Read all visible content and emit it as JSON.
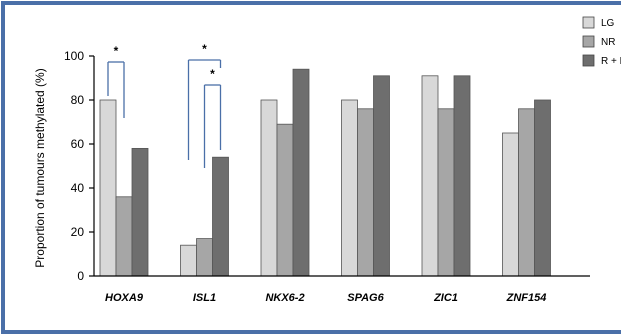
{
  "chart_data": {
    "type": "bar",
    "title": "",
    "xlabel": "",
    "ylabel": "Proportion of tumours methylated (%)",
    "ylim": [
      0,
      100
    ],
    "yticks": [
      0,
      20,
      40,
      60,
      80,
      100
    ],
    "categories": [
      "HOXA9",
      "ISL1",
      "NKX6-2",
      "SPAG6",
      "ZIC1",
      "ZNF154"
    ],
    "series": [
      {
        "name": "LG",
        "color": "#d8d8d8",
        "values": [
          80,
          14,
          80,
          80,
          91,
          65
        ]
      },
      {
        "name": "NR",
        "color": "#a6a6a6",
        "values": [
          36,
          17,
          69,
          76,
          76,
          76
        ]
      },
      {
        "name": "R + P",
        "color": "#6e6e6e",
        "values": [
          58,
          54,
          94,
          91,
          91,
          80
        ]
      }
    ],
    "legend_position": "top-right",
    "grid": false,
    "annotations": [
      {
        "text": "*",
        "category": "HOXA9",
        "from_series": "LG",
        "to_series": "NR"
      },
      {
        "text": "*",
        "category": "ISL1",
        "from_series": "LG",
        "to_series": "R + P"
      },
      {
        "text": "*",
        "category": "ISL1",
        "from_series": "NR",
        "to_series": "R + P"
      }
    ]
  },
  "colors": {
    "border": "#4a6fa8",
    "axis": "#000000"
  }
}
